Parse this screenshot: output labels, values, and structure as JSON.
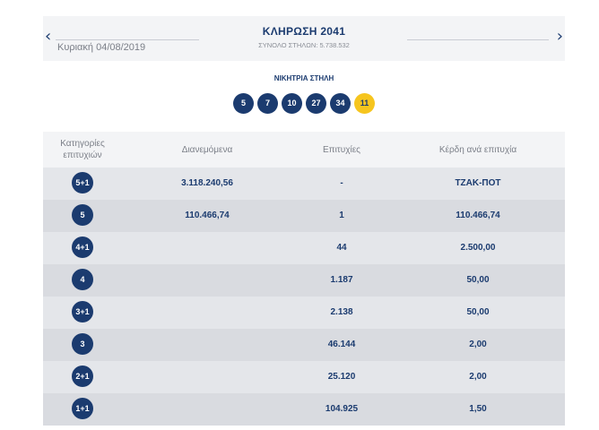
{
  "header": {
    "date": "Κυριακή 04/08/2019",
    "title": "ΚΛΗΡΩΣΗ 2041",
    "subtitle": "ΣΥΝΟΛΟ ΣΤΗΛΩΝ: 5.738.532",
    "prev_icon": "chevron-left-icon",
    "next_icon": "chevron-right-icon"
  },
  "winning": {
    "label": "ΝΙΚΗΤΡΙΑ ΣΤΗΛΗ",
    "numbers": [
      "5",
      "7",
      "10",
      "27",
      "34"
    ],
    "joker": "11",
    "colors": {
      "ball": "#1b3b6f",
      "joker": "#f6c51e"
    }
  },
  "table": {
    "headers": {
      "category": "Κατηγορίες επιτυχιών",
      "distributed": "Διανεμόμενα",
      "winners": "Επιτυχίες",
      "prize": "Κέρδη ανά επιτυχία"
    },
    "rows": [
      {
        "category": "5+1",
        "distributed": "3.118.240,56",
        "winners": "-",
        "prize": "ΤΖΑΚ-ΠΟΤ"
      },
      {
        "category": "5",
        "distributed": "110.466,74",
        "winners": "1",
        "prize": "110.466,74"
      },
      {
        "category": "4+1",
        "distributed": "",
        "winners": "44",
        "prize": "2.500,00"
      },
      {
        "category": "4",
        "distributed": "",
        "winners": "1.187",
        "prize": "50,00"
      },
      {
        "category": "3+1",
        "distributed": "",
        "winners": "2.138",
        "prize": "50,00"
      },
      {
        "category": "3",
        "distributed": "",
        "winners": "46.144",
        "prize": "2,00"
      },
      {
        "category": "2+1",
        "distributed": "",
        "winners": "25.120",
        "prize": "2,00"
      },
      {
        "category": "1+1",
        "distributed": "",
        "winners": "104.925",
        "prize": "1,50"
      }
    ]
  }
}
